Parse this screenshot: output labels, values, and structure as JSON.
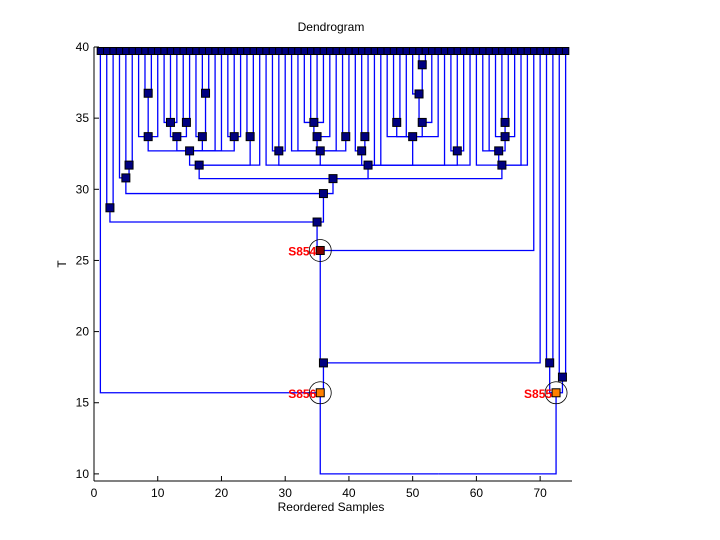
{
  "chart_data": {
    "type": "dendrogram",
    "title": "Dendrogram",
    "xlabel": "Reordered Samples",
    "ylabel": "T",
    "xlim": [
      0,
      75
    ],
    "ylim": [
      9.5,
      40
    ],
    "xticks": [
      0,
      10,
      20,
      30,
      40,
      50,
      60,
      70
    ],
    "yticks": [
      10,
      15,
      20,
      25,
      30,
      35,
      40
    ],
    "grid": false,
    "colors": {
      "line": "#0000ff",
      "node": "#000080",
      "node_border": "#000000",
      "highlight_dark": "#800000",
      "highlight_orange": "#ff8000",
      "label": "#ff0000"
    },
    "leaf_count": 74,
    "leaf_y": 40,
    "leaf_parents": [
      "S856",
      "A",
      "A",
      "C",
      "D",
      "D",
      "P2",
      "P1",
      "P1",
      "P2",
      "Q1",
      "Q1",
      "Q1",
      "Q2",
      "Q2",
      "R2",
      "R1",
      "R1",
      "I",
      "I",
      "S1",
      "S1",
      "S1",
      "J",
      "J",
      "H",
      "M",
      "T1",
      "T1",
      "T1",
      "T2",
      "T2",
      "T4",
      "T4",
      "T4",
      "T4",
      "T3",
      "T2",
      "T5",
      "T5",
      "T6",
      "T7",
      "T7",
      "M",
      "M",
      "U1",
      "U2",
      "U2",
      "U1",
      "U4",
      "U5",
      "U5",
      "U3",
      "U1",
      "M",
      "V1",
      "V1",
      "V1",
      "M",
      "N",
      "W3",
      "W3",
      "W2",
      "W1",
      "W1",
      "W2",
      "N",
      "N",
      "S854",
      "X",
      "Y1",
      "Y1",
      "Y2",
      "Y2"
    ],
    "nodes": [
      {
        "id": "root",
        "x": 54,
        "y": 10,
        "parent": null,
        "marker": false
      },
      {
        "id": "S856",
        "x": 35.5,
        "y": 15.7,
        "parent": "root",
        "label": "S856",
        "fill": "#ff8000",
        "circle": true
      },
      {
        "id": "S855",
        "x": 72.5,
        "y": 15.7,
        "parent": "root",
        "label": "S855",
        "fill": "#ff8000",
        "circle": true
      },
      {
        "id": "X",
        "x": 36,
        "y": 17.8,
        "parent": "S856"
      },
      {
        "id": "S854",
        "x": 35.5,
        "y": 25.7,
        "parent": "X",
        "label": "S854",
        "fill": "#800000",
        "circle": true
      },
      {
        "id": "B",
        "x": 35,
        "y": 27.7,
        "parent": "S854"
      },
      {
        "id": "A",
        "x": 2.5,
        "y": 28.7,
        "parent": "B"
      },
      {
        "id": "F",
        "x": 36,
        "y": 29.7,
        "parent": "B"
      },
      {
        "id": "C",
        "x": 5,
        "y": 30.8,
        "parent": "F"
      },
      {
        "id": "D",
        "x": 5.5,
        "y": 31.7,
        "parent": "C"
      },
      {
        "id": "G",
        "x": 37.5,
        "y": 30.75,
        "parent": "F"
      },
      {
        "id": "H",
        "x": 16.5,
        "y": 31.7,
        "parent": "G"
      },
      {
        "id": "I",
        "x": 15,
        "y": 32.7,
        "parent": "H"
      },
      {
        "id": "P2",
        "x": 8.5,
        "y": 33.7,
        "parent": "I"
      },
      {
        "id": "P1",
        "x": 8.5,
        "y": 36.75,
        "parent": "P2"
      },
      {
        "id": "Q3",
        "x": 13,
        "y": 33.7,
        "parent": "I"
      },
      {
        "id": "Q1",
        "x": 12,
        "y": 34.7,
        "parent": "Q3"
      },
      {
        "id": "Q2",
        "x": 14.5,
        "y": 34.7,
        "parent": "Q3"
      },
      {
        "id": "R2",
        "x": 17,
        "y": 33.7,
        "parent": "I"
      },
      {
        "id": "R1",
        "x": 17.5,
        "y": 36.75,
        "parent": "R2"
      },
      {
        "id": "S1",
        "x": 22,
        "y": 33.7,
        "parent": "I"
      },
      {
        "id": "J",
        "x": 24.5,
        "y": 33.7,
        "parent": "H"
      },
      {
        "id": "M",
        "x": 43,
        "y": 31.7,
        "parent": "G"
      },
      {
        "id": "T1",
        "x": 29,
        "y": 32.7,
        "parent": "M"
      },
      {
        "id": "T2",
        "x": 35.5,
        "y": 32.7,
        "parent": "M"
      },
      {
        "id": "T3",
        "x": 35,
        "y": 33.7,
        "parent": "T2"
      },
      {
        "id": "T4",
        "x": 34.5,
        "y": 34.7,
        "parent": "T3"
      },
      {
        "id": "T5",
        "x": 39.5,
        "y": 33.7,
        "parent": "T2"
      },
      {
        "id": "T6",
        "x": 42,
        "y": 32.7,
        "parent": "M"
      },
      {
        "id": "T7",
        "x": 42.5,
        "y": 33.7,
        "parent": "T6"
      },
      {
        "id": "U1",
        "x": 50,
        "y": 33.7,
        "parent": "M"
      },
      {
        "id": "U2",
        "x": 47.5,
        "y": 34.7,
        "parent": "U1"
      },
      {
        "id": "U3",
        "x": 51.5,
        "y": 34.7,
        "parent": "U1"
      },
      {
        "id": "U4",
        "x": 51,
        "y": 36.7,
        "parent": "U3"
      },
      {
        "id": "U5",
        "x": 51.5,
        "y": 38.75,
        "parent": "U4"
      },
      {
        "id": "V1",
        "x": 57,
        "y": 32.7,
        "parent": "M"
      },
      {
        "id": "N",
        "x": 64,
        "y": 31.7,
        "parent": "G"
      },
      {
        "id": "W3",
        "x": 63.5,
        "y": 32.7,
        "parent": "N"
      },
      {
        "id": "W2",
        "x": 64.5,
        "y": 33.7,
        "parent": "W3"
      },
      {
        "id": "W1",
        "x": 64.5,
        "y": 34.7,
        "parent": "W2"
      },
      {
        "id": "Y1",
        "x": 71.5,
        "y": 17.8,
        "parent": "S855"
      },
      {
        "id": "Y2",
        "x": 73.5,
        "y": 16.8,
        "parent": "S855"
      }
    ]
  }
}
